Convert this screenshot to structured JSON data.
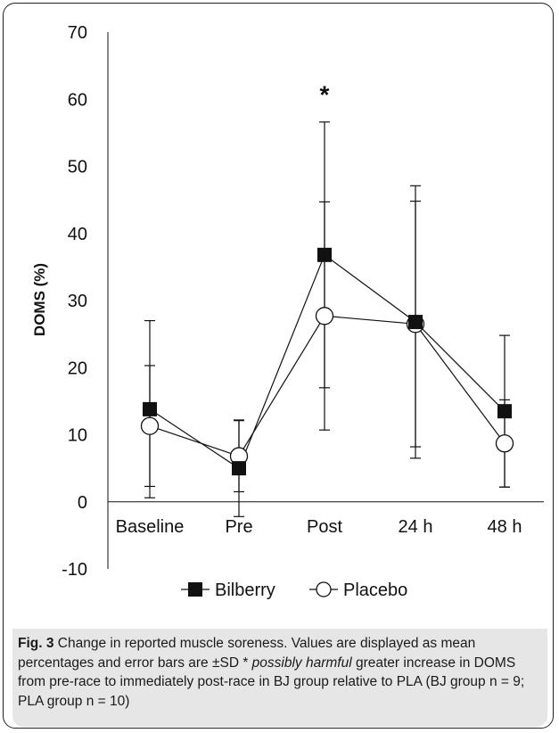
{
  "chart_data": {
    "type": "line",
    "categories": [
      "Baseline",
      "Pre",
      "Post",
      "24 h",
      "48 h"
    ],
    "series": [
      {
        "name": "Bilberry",
        "marker": "filled-square",
        "color": "#111111",
        "values": [
          13.8,
          5.0,
          36.8,
          26.8,
          13.5
        ],
        "sd": [
          13.2,
          7.2,
          19.8,
          20.3,
          11.3
        ]
      },
      {
        "name": "Placebo",
        "marker": "open-circle",
        "color": "#111111",
        "values": [
          11.3,
          6.8,
          27.7,
          26.5,
          8.7
        ],
        "sd": [
          9.0,
          5.3,
          17.0,
          18.3,
          6.5
        ]
      }
    ],
    "title": "",
    "xlabel": "",
    "ylabel": "DOMS (%)",
    "ylim": [
      -10,
      70
    ],
    "yticks": [
      -10,
      0,
      10,
      20,
      30,
      40,
      50,
      60,
      70
    ],
    "grid": false,
    "legend": "bottom",
    "annotations": [
      {
        "text": "*",
        "category": "Post",
        "y": 61
      }
    ]
  },
  "caption": {
    "figure_label": "Fig. 3",
    "text_part1": " Change in reported muscle soreness. Values are displayed as mean percentages and error bars are ±SD * ",
    "emphasis": "possibly harmful",
    "text_part2": " greater increase in DOMS from pre-race to immediately post-race in BJ group relative to PLA (BJ group n = 9; PLA group n = 10)"
  }
}
